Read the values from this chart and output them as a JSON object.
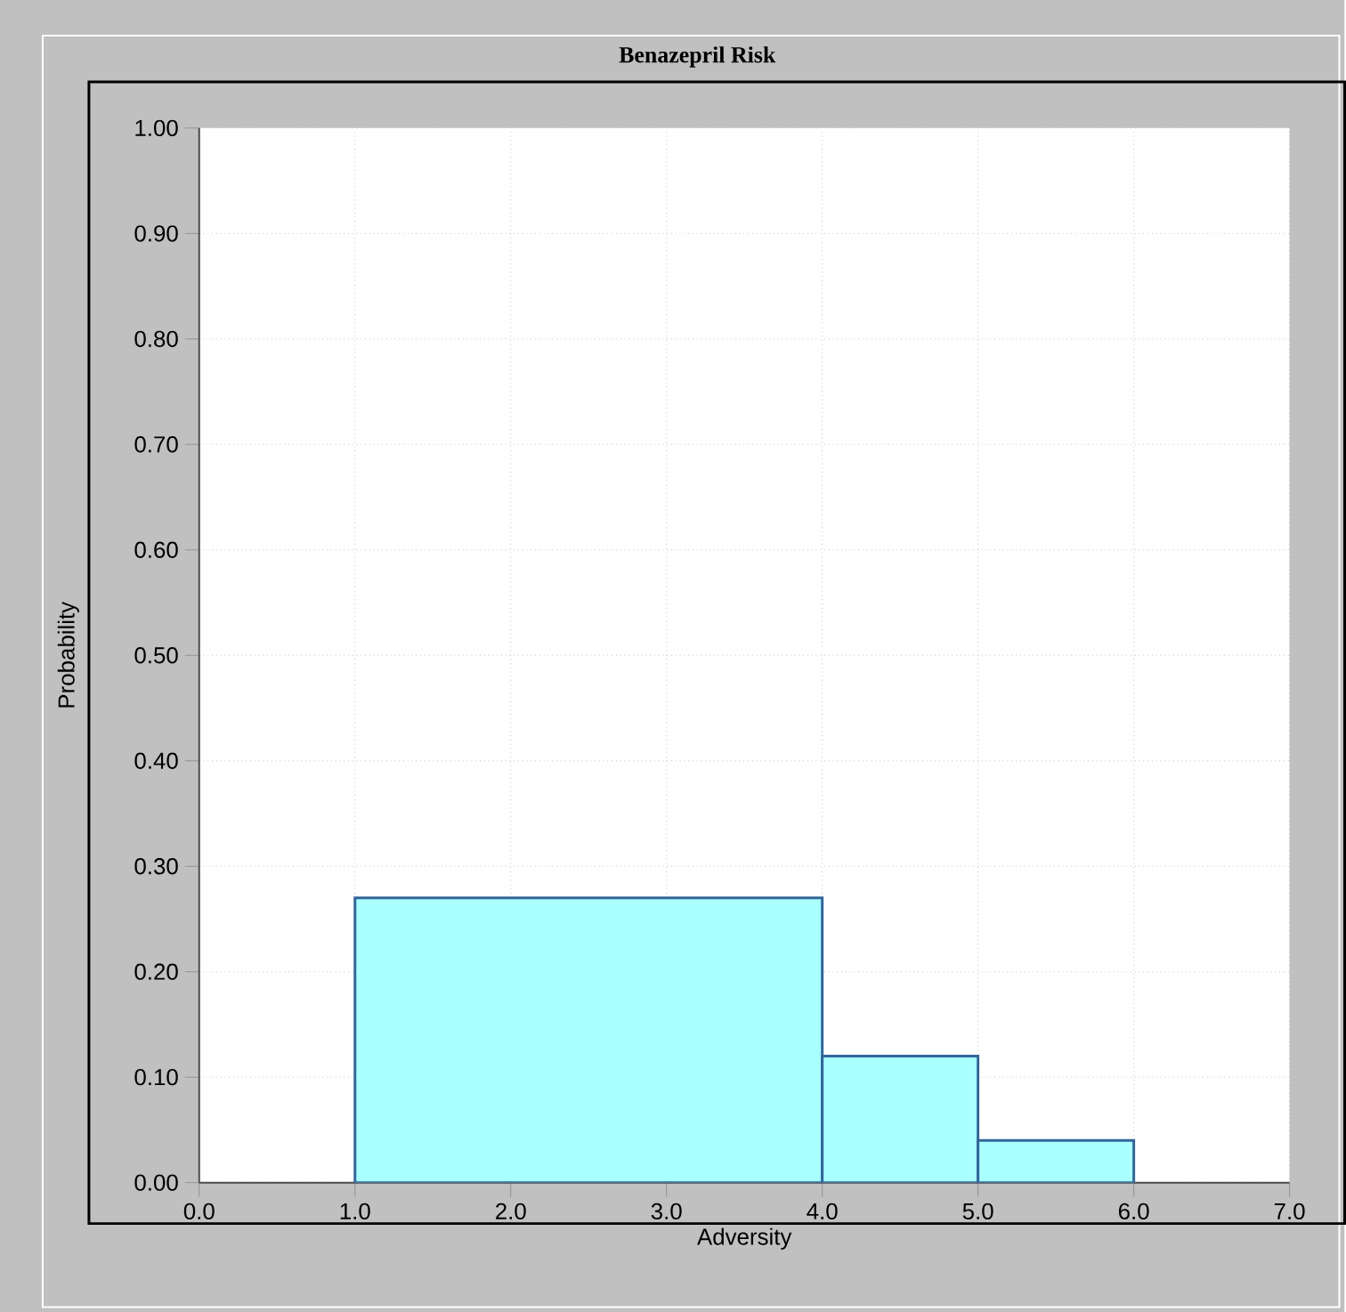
{
  "chart_data": {
    "type": "histogram",
    "title": "Benazepril Risk",
    "xlabel": "Adversity",
    "ylabel": "Probability",
    "bins": [
      1,
      4,
      5,
      6
    ],
    "values": [
      0.27,
      0.12,
      0.04
    ],
    "color": "#aaffff",
    "xlim": [
      0,
      7
    ],
    "ylim": [
      0,
      1
    ],
    "xticks": [
      {
        "value": 0,
        "label": "0.0"
      },
      {
        "value": 1,
        "label": "1.0"
      },
      {
        "value": 2,
        "label": "2.0"
      },
      {
        "value": 3,
        "label": "3.0"
      },
      {
        "value": 4,
        "label": "4.0"
      },
      {
        "value": 5,
        "label": "5.0"
      },
      {
        "value": 6,
        "label": "6.0"
      },
      {
        "value": 7,
        "label": "7.0"
      }
    ],
    "yticks": [
      {
        "value": 0,
        "label": "0.00"
      },
      {
        "value": 0.1,
        "label": "0.10"
      },
      {
        "value": 0.2,
        "label": "0.20"
      },
      {
        "value": 0.3,
        "label": "0.30"
      },
      {
        "value": 0.4,
        "label": "0.40"
      },
      {
        "value": 0.5,
        "label": "0.50"
      },
      {
        "value": 0.6,
        "label": "0.60"
      },
      {
        "value": 0.7,
        "label": "0.70"
      },
      {
        "value": 0.8,
        "label": "0.80"
      },
      {
        "value": 0.9,
        "label": "0.90"
      },
      {
        "value": 1,
        "label": "1.00"
      }
    ],
    "grid": true
  }
}
